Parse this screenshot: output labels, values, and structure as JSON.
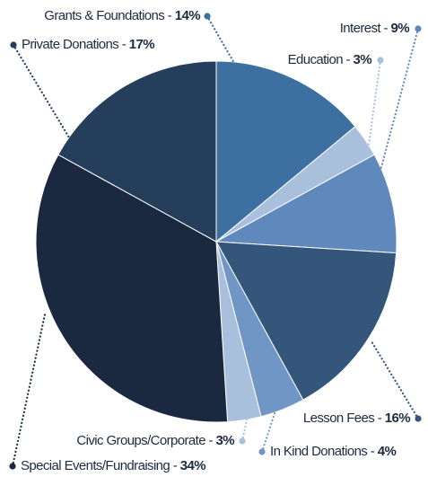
{
  "chart_data": {
    "type": "pie",
    "categories": [
      "Grants & Foundations",
      "Education",
      "Interest",
      "Lesson Fees",
      "In Kind Donations",
      "Civic Groups/Corporate",
      "Special Events/Fundraising",
      "Private Donations"
    ],
    "values": [
      14,
      3,
      9,
      16,
      4,
      3,
      34,
      17
    ],
    "value_labels": [
      "14%",
      "3%",
      "9%",
      "16%",
      "4%",
      "3%",
      "34%",
      "17%"
    ],
    "label_separator": "-",
    "colors": [
      "#3e6fa1",
      "#a9c0dc",
      "#5f88bd",
      "#34567b",
      "#7096c5",
      "#a9c0dc",
      "#1a2940",
      "#243e5c"
    ]
  }
}
